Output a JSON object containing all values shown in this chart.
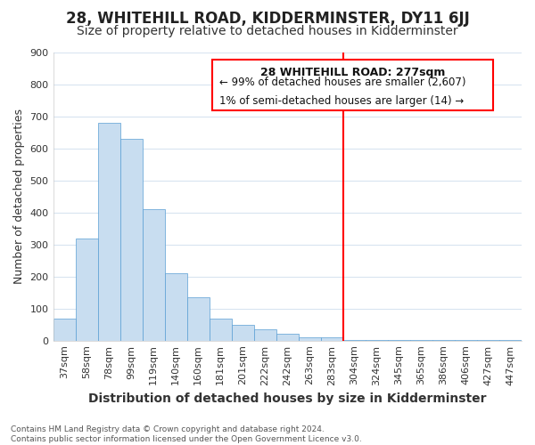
{
  "title": "28, WHITEHILL ROAD, KIDDERMINSTER, DY11 6JJ",
  "subtitle": "Size of property relative to detached houses in Kidderminster",
  "xlabel": "Distribution of detached houses by size in Kidderminster",
  "ylabel": "Number of detached properties",
  "categories": [
    "37sqm",
    "58sqm",
    "78sqm",
    "99sqm",
    "119sqm",
    "140sqm",
    "160sqm",
    "181sqm",
    "201sqm",
    "222sqm",
    "242sqm",
    "263sqm",
    "283sqm",
    "304sqm",
    "324sqm",
    "345sqm",
    "365sqm",
    "386sqm",
    "406sqm",
    "427sqm",
    "447sqm"
  ],
  "values": [
    70,
    320,
    680,
    630,
    410,
    210,
    135,
    68,
    48,
    35,
    20,
    10,
    10,
    2,
    1,
    1,
    1,
    1,
    1,
    1,
    2
  ],
  "bar_color": "#c8ddf0",
  "bar_edge_color": "#5a9fd4",
  "highlight_index": 12,
  "annotation_title": "28 WHITEHILL ROAD: 277sqm",
  "annotation_line1": "← 99% of detached houses are smaller (2,607)",
  "annotation_line2": "1% of semi-detached houses are larger (14) →",
  "footer_line1": "Contains HM Land Registry data © Crown copyright and database right 2024.",
  "footer_line2": "Contains public sector information licensed under the Open Government Licence v3.0.",
  "bg_color": "#ffffff",
  "plot_bg_color": "#ffffff",
  "grid_color": "#d8e4f0",
  "title_fontsize": 12,
  "subtitle_fontsize": 10,
  "ylabel_fontsize": 9,
  "xlabel_fontsize": 10,
  "tick_fontsize": 8,
  "ylim": [
    0,
    900
  ],
  "yticks": [
    0,
    100,
    200,
    300,
    400,
    500,
    600,
    700,
    800,
    900
  ]
}
